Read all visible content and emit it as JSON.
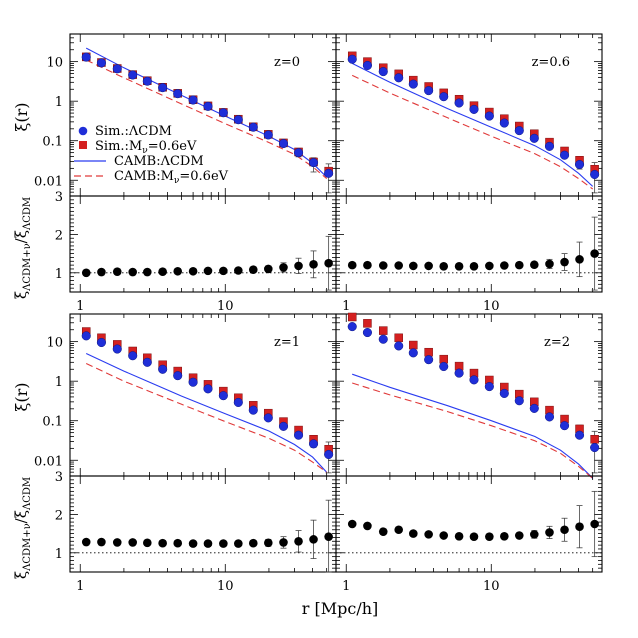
{
  "figure": {
    "xlabel": "r  [Mpc/h]",
    "ylabel_top": "ξ(r)",
    "ylabel_bottom_main": "ξ",
    "ylabel_bottom_num_sub": "ΛCDM+ν",
    "ylabel_bottom_den_sub": "ΛCDM",
    "ylabel_bottom_slash": "/ξ"
  },
  "legend": {
    "placement": "inside top-left panel, lower-left",
    "entries": [
      {
        "key": "sim_lcdm",
        "label": "Sim.:ΛCDM",
        "marker": "circle",
        "color": "#1f2ed8"
      },
      {
        "key": "sim_nu",
        "label": "Sim.:M",
        "sub": "ν",
        "suffix": "=0.6eV",
        "marker": "square",
        "color": "#d42020"
      },
      {
        "key": "camb_lcdm",
        "label": "CAMB:ΛCDM",
        "line": "solid",
        "color": "#2a3cf0"
      },
      {
        "key": "camb_nu",
        "label": "CAMB:M",
        "sub": "ν",
        "suffix": "=0.6eV",
        "line": "dashed",
        "color": "#e03a3a"
      }
    ]
  },
  "colors": {
    "sim_lcdm": "#1f2ed8",
    "sim_nu": "#d42020",
    "camb_lcdm": "#2a3cf0",
    "camb_nu": "#e03a3a",
    "ratio": "#000000"
  },
  "chart_data": [
    {
      "type": "scatter",
      "panel": "z=0",
      "label": "z=0",
      "xscale": "log",
      "yscale": "log",
      "xlim": [
        0.85,
        58
      ],
      "ylim": [
        0.004,
        50
      ],
      "xticks": [
        "1",
        "10"
      ],
      "yticks": [
        "10",
        "1",
        "0.1",
        "0.01"
      ],
      "x": [
        1.1,
        1.4,
        1.8,
        2.3,
        2.9,
        3.7,
        4.7,
        6.0,
        7.6,
        9.7,
        12.3,
        15.6,
        19.8,
        25.2,
        32.0,
        40.6,
        51.6
      ],
      "series": [
        {
          "name": "Sim.:ΛCDM",
          "key": "sim_lcdm",
          "y": [
            13.0,
            9.3,
            6.6,
            4.6,
            3.2,
            2.2,
            1.55,
            1.07,
            0.74,
            0.51,
            0.34,
            0.22,
            0.14,
            0.085,
            0.05,
            0.028,
            0.015
          ]
        },
        {
          "name": "Sim.:Mν=0.6eV",
          "key": "sim_nu",
          "y": [
            13.2,
            9.5,
            6.7,
            4.7,
            3.3,
            2.25,
            1.58,
            1.09,
            0.76,
            0.52,
            0.35,
            0.225,
            0.145,
            0.088,
            0.052,
            0.029,
            0.017
          ]
        },
        {
          "name": "CAMB:ΛCDM",
          "key": "camb_lcdm",
          "x": [
            1.1,
            2,
            5,
            10,
            20,
            30,
            40,
            50
          ],
          "y": [
            22.0,
            7.0,
            1.4,
            0.42,
            0.13,
            0.06,
            0.027,
            0.012
          ]
        },
        {
          "name": "CAMB:Mν=0.6eV",
          "key": "camb_nu",
          "x": [
            1.1,
            2,
            5,
            10,
            20,
            30,
            40,
            50
          ],
          "y": [
            11.0,
            3.9,
            0.85,
            0.27,
            0.09,
            0.045,
            0.022,
            0.011
          ]
        }
      ],
      "errors_upper": [
        0,
        0,
        0,
        0,
        0,
        0,
        0,
        0,
        0,
        0,
        0,
        0,
        0,
        0,
        0.008,
        0.008,
        0.009
      ]
    },
    {
      "type": "scatter",
      "panel": "z=0.6",
      "label": "z=0.6",
      "xscale": "log",
      "yscale": "log",
      "xlim": [
        0.85,
        58
      ],
      "ylim": [
        0.004,
        50
      ],
      "xticks": [
        "1",
        "10"
      ],
      "yticks": [],
      "x": [
        1.1,
        1.4,
        1.8,
        2.3,
        2.9,
        3.7,
        4.7,
        6.0,
        7.6,
        9.7,
        12.3,
        15.6,
        19.8,
        25.2,
        32.0,
        40.6,
        51.6
      ],
      "series": [
        {
          "name": "Sim.:ΛCDM",
          "key": "sim_lcdm",
          "y": [
            11.5,
            8.0,
            5.6,
            3.9,
            2.7,
            1.85,
            1.3,
            0.9,
            0.62,
            0.42,
            0.28,
            0.18,
            0.115,
            0.072,
            0.043,
            0.025,
            0.014
          ]
        },
        {
          "name": "Sim.:Mν=0.6eV",
          "key": "sim_nu",
          "y": [
            14.0,
            10.0,
            7.0,
            4.9,
            3.4,
            2.35,
            1.62,
            1.12,
            0.77,
            0.53,
            0.36,
            0.235,
            0.15,
            0.092,
            0.055,
            0.032,
            0.019
          ]
        },
        {
          "name": "CAMB:ΛCDM",
          "key": "camb_lcdm",
          "x": [
            1.1,
            2,
            5,
            10,
            20,
            30,
            40,
            50
          ],
          "y": [
            9.0,
            3.0,
            0.65,
            0.22,
            0.075,
            0.033,
            0.015,
            0.007
          ]
        },
        {
          "name": "CAMB:Mν=0.6eV",
          "key": "camb_nu",
          "x": [
            1.1,
            2,
            5,
            10,
            20,
            30,
            40,
            50
          ],
          "y": [
            4.5,
            1.6,
            0.38,
            0.13,
            0.047,
            0.022,
            0.011,
            0.006
          ]
        }
      ],
      "errors_upper": [
        0,
        0,
        0,
        0,
        0,
        0,
        0,
        0,
        0,
        0,
        0,
        0,
        0,
        0.006,
        0.006,
        0.008,
        0.009
      ]
    },
    {
      "type": "scatter",
      "panel": "z=1",
      "label": "z=1",
      "xscale": "log",
      "yscale": "log",
      "xlim": [
        0.85,
        58
      ],
      "ylim": [
        0.004,
        50
      ],
      "xticks": [
        "1",
        "10"
      ],
      "yticks": [
        "10",
        "1",
        "0.1",
        "0.01"
      ],
      "x": [
        1.1,
        1.4,
        1.8,
        2.3,
        2.9,
        3.7,
        4.7,
        6.0,
        7.6,
        9.7,
        12.3,
        15.6,
        19.8,
        25.2,
        32.0,
        40.6,
        51.6
      ],
      "series": [
        {
          "name": "Sim.:ΛCDM",
          "key": "sim_lcdm",
          "y": [
            14.0,
            9.5,
            6.5,
            4.4,
            3.0,
            2.0,
            1.38,
            0.94,
            0.64,
            0.43,
            0.29,
            0.185,
            0.118,
            0.072,
            0.043,
            0.026,
            0.014
          ]
        },
        {
          "name": "Sim.:Mν=0.6eV",
          "key": "sim_nu",
          "y": [
            18.0,
            12.5,
            8.5,
            5.8,
            3.9,
            2.6,
            1.8,
            1.22,
            0.83,
            0.56,
            0.38,
            0.245,
            0.155,
            0.095,
            0.058,
            0.034,
            0.019
          ]
        },
        {
          "name": "CAMB:ΛCDM",
          "key": "camb_lcdm",
          "x": [
            1.1,
            2,
            5,
            10,
            20,
            30,
            40,
            50
          ],
          "y": [
            5.0,
            1.8,
            0.42,
            0.15,
            0.055,
            0.025,
            0.012,
            0.005
          ]
        },
        {
          "name": "CAMB:Mν=0.6eV",
          "key": "camb_nu",
          "x": [
            1.1,
            2,
            5,
            10,
            20,
            30,
            40,
            50
          ],
          "y": [
            2.8,
            1.0,
            0.26,
            0.095,
            0.036,
            0.018,
            0.009,
            0.005
          ]
        }
      ],
      "errors_upper": [
        0,
        0,
        0,
        0,
        0,
        0,
        0,
        0,
        0,
        0,
        0,
        0,
        0,
        0.005,
        0.006,
        0.008,
        0.01
      ]
    },
    {
      "type": "scatter",
      "panel": "z=2",
      "label": "z=2",
      "xscale": "log",
      "yscale": "log",
      "xlim": [
        0.85,
        58
      ],
      "ylim": [
        0.004,
        50
      ],
      "xticks": [
        "1",
        "10"
      ],
      "yticks": [],
      "x": [
        1.1,
        1.4,
        1.8,
        2.3,
        2.9,
        3.7,
        4.7,
        6.0,
        7.6,
        9.7,
        12.3,
        15.6,
        19.8,
        25.2,
        32.0,
        40.6,
        51.6
      ],
      "series": [
        {
          "name": "Sim.:ΛCDM",
          "key": "sim_lcdm",
          "y": [
            24.0,
            17.0,
            11.5,
            7.8,
            5.2,
            3.5,
            2.35,
            1.6,
            1.08,
            0.73,
            0.49,
            0.32,
            0.205,
            0.125,
            0.075,
            0.043,
            0.021
          ]
        },
        {
          "name": "Sim.:Mν=0.6eV",
          "key": "sim_nu",
          "y": [
            42.0,
            29.0,
            19.0,
            12.5,
            8.2,
            5.4,
            3.6,
            2.4,
            1.6,
            1.07,
            0.71,
            0.47,
            0.3,
            0.185,
            0.11,
            0.062,
            0.034
          ]
        },
        {
          "name": "CAMB:ΛCDM",
          "key": "camb_lcdm",
          "x": [
            1.1,
            2,
            5,
            10,
            20,
            30,
            40,
            50
          ],
          "y": [
            1.5,
            0.7,
            0.24,
            0.1,
            0.04,
            0.018,
            0.008,
            0.0035
          ]
        },
        {
          "name": "CAMB:Mν=0.6eV",
          "key": "camb_nu",
          "x": [
            1.1,
            2,
            5,
            10,
            20,
            30,
            40,
            50
          ],
          "y": [
            0.9,
            0.45,
            0.17,
            0.075,
            0.031,
            0.015,
            0.007,
            0.0035
          ]
        }
      ],
      "errors_upper": [
        0,
        0,
        0,
        0,
        0,
        0,
        0,
        0,
        0,
        0,
        0,
        0,
        0,
        0.008,
        0.012,
        0.015,
        0.02
      ]
    },
    {
      "type": "scatter",
      "panel": "ratio z=0",
      "xscale": "log",
      "xlim": [
        0.85,
        58
      ],
      "ylim": [
        0.5,
        3.0
      ],
      "xticks": [
        "1",
        "10"
      ],
      "yticks": [
        "3",
        "2",
        "1"
      ],
      "reference_line": 1,
      "x": [
        1.1,
        1.4,
        1.8,
        2.3,
        2.9,
        3.7,
        4.7,
        6.0,
        7.6,
        9.7,
        12.3,
        15.6,
        19.8,
        25.2,
        32.0,
        40.6,
        51.6
      ],
      "y": [
        1.0,
        1.02,
        1.03,
        1.02,
        1.02,
        1.03,
        1.04,
        1.04,
        1.05,
        1.05,
        1.06,
        1.08,
        1.1,
        1.14,
        1.18,
        1.22,
        1.25
      ],
      "yerr": [
        0.02,
        0.02,
        0.02,
        0.02,
        0.02,
        0.02,
        0.02,
        0.03,
        0.03,
        0.03,
        0.04,
        0.05,
        0.08,
        0.12,
        0.2,
        0.35,
        0.7
      ]
    },
    {
      "type": "scatter",
      "panel": "ratio z=0.6",
      "xscale": "log",
      "xlim": [
        0.85,
        58
      ],
      "ylim": [
        0.5,
        3.0
      ],
      "xticks": [
        "1",
        "10"
      ],
      "yticks": [],
      "reference_line": 1,
      "x": [
        1.1,
        1.4,
        1.8,
        2.3,
        2.9,
        3.7,
        4.7,
        6.0,
        7.6,
        9.7,
        12.3,
        15.6,
        19.8,
        25.2,
        32.0,
        40.6,
        51.6
      ],
      "y": [
        1.2,
        1.2,
        1.19,
        1.19,
        1.18,
        1.18,
        1.17,
        1.17,
        1.17,
        1.18,
        1.19,
        1.2,
        1.21,
        1.23,
        1.28,
        1.35,
        1.5
      ],
      "yerr": [
        0.02,
        0.02,
        0.02,
        0.02,
        0.02,
        0.02,
        0.02,
        0.03,
        0.03,
        0.03,
        0.04,
        0.05,
        0.07,
        0.12,
        0.22,
        0.45,
        0.95
      ]
    },
    {
      "type": "scatter",
      "panel": "ratio z=1",
      "xscale": "log",
      "xlim": [
        0.85,
        58
      ],
      "ylim": [
        0.5,
        3.0
      ],
      "xticks": [
        "1",
        "10"
      ],
      "yticks": [
        "3",
        "2",
        "1"
      ],
      "reference_line": 1,
      "x": [
        1.1,
        1.4,
        1.8,
        2.3,
        2.9,
        3.7,
        4.7,
        6.0,
        7.6,
        9.7,
        12.3,
        15.6,
        19.8,
        25.2,
        32.0,
        40.6,
        51.6
      ],
      "y": [
        1.28,
        1.28,
        1.27,
        1.27,
        1.26,
        1.25,
        1.25,
        1.24,
        1.24,
        1.24,
        1.24,
        1.25,
        1.26,
        1.27,
        1.3,
        1.35,
        1.42
      ],
      "yerr": [
        0.02,
        0.02,
        0.02,
        0.02,
        0.02,
        0.02,
        0.02,
        0.03,
        0.03,
        0.03,
        0.04,
        0.06,
        0.09,
        0.15,
        0.28,
        0.5,
        0.95
      ]
    },
    {
      "type": "scatter",
      "panel": "ratio z=2",
      "xscale": "log",
      "xlim": [
        0.85,
        58
      ],
      "ylim": [
        0.5,
        3.0
      ],
      "xticks": [
        "1",
        "10"
      ],
      "yticks": [],
      "reference_line": 1,
      "x": [
        1.1,
        1.4,
        1.8,
        2.3,
        2.9,
        3.7,
        4.7,
        6.0,
        7.6,
        9.7,
        12.3,
        15.6,
        19.8,
        25.2,
        32.0,
        40.6,
        51.6
      ],
      "y": [
        1.75,
        1.7,
        1.55,
        1.6,
        1.5,
        1.48,
        1.45,
        1.43,
        1.42,
        1.42,
        1.43,
        1.45,
        1.48,
        1.53,
        1.6,
        1.68,
        1.75
      ],
      "yerr": [
        0.06,
        0.05,
        0.04,
        0.04,
        0.04,
        0.04,
        0.04,
        0.04,
        0.04,
        0.04,
        0.05,
        0.07,
        0.1,
        0.16,
        0.3,
        0.55,
        0.85
      ]
    }
  ]
}
